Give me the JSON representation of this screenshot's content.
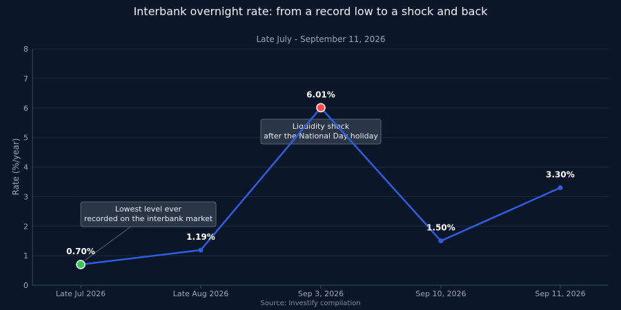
{
  "chart_data": {
    "type": "line",
    "title": "Interbank overnight rate: from a record low to a shock and back",
    "subtitle": "Late July - September 11, 2026",
    "xlabel": "",
    "ylabel": "Rate (%/year)",
    "ylim": [
      0,
      8
    ],
    "yticks": [
      0,
      1,
      2,
      3,
      4,
      5,
      6,
      7,
      8
    ],
    "grid": true,
    "categories": [
      "Late Jul 2026",
      "Late Aug 2026",
      "Sep 3, 2026",
      "Sep 10, 2026",
      "Sep 11, 2026"
    ],
    "values": [
      0.7,
      1.19,
      6.01,
      1.5,
      3.3
    ],
    "data_labels": [
      "0.70%",
      "1.19%",
      "6.01%",
      "1.50%",
      "3.30%"
    ],
    "annotations": [
      {
        "point_index": 0,
        "lines": [
          "Lowest level ever",
          "recorded on the interbank market"
        ],
        "marker_color": "#34c759"
      },
      {
        "point_index": 2,
        "lines": [
          "Liquidity shock",
          "after the National Day holiday"
        ],
        "marker_color": "#ff4d4d"
      }
    ],
    "source": "Source: Investify compilation"
  },
  "colors": {
    "line": "#2f5fe0",
    "grid": "#1c2a40",
    "axis": "#3a4a62",
    "low_marker": "#34c759",
    "high_marker": "#ff4d4d",
    "annotation_bg": "#2a3546",
    "annotation_border": "#5b6778"
  }
}
